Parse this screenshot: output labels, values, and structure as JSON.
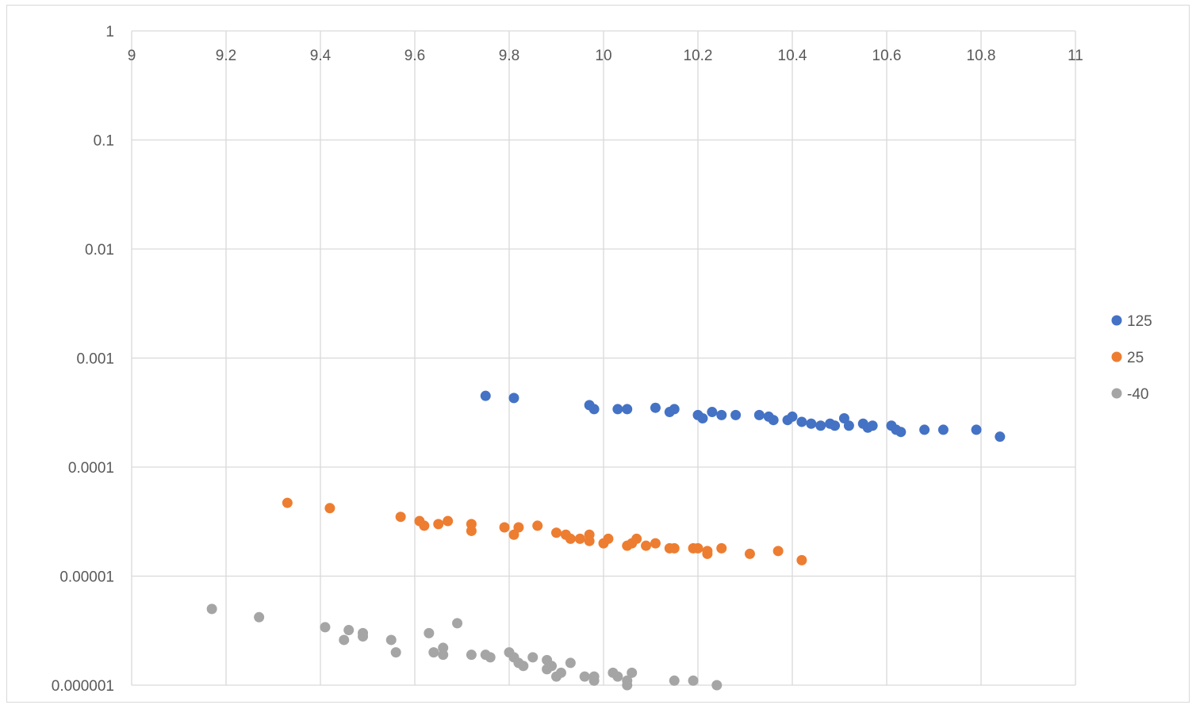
{
  "chart_data": {
    "type": "scatter",
    "title": "",
    "xlabel": "",
    "ylabel": "",
    "x_axis": {
      "min": 9,
      "max": 11,
      "major_unit": 0.2,
      "tick_labels": [
        "9",
        "9.2",
        "9.4",
        "9.6",
        "9.8",
        "10",
        "10.2",
        "10.4",
        "10.6",
        "10.8",
        "11"
      ],
      "position": "top"
    },
    "y_axis": {
      "scale": "log",
      "min": 1e-06,
      "max": 1,
      "tick_values": [
        1,
        0.1,
        0.01,
        0.001,
        0.0001,
        1e-05,
        1e-06
      ],
      "tick_labels": [
        "1",
        "0.1",
        "0.01",
        "0.001",
        "0.0001",
        "0.00001",
        "0.000001"
      ]
    },
    "grid": true,
    "legend_position": "right",
    "series": [
      {
        "name": "125",
        "color": "#4472C4",
        "points": [
          [
            9.75,
            0.00045
          ],
          [
            9.81,
            0.00043
          ],
          [
            9.97,
            0.00037
          ],
          [
            9.98,
            0.00034
          ],
          [
            10.03,
            0.00034
          ],
          [
            10.05,
            0.00034
          ],
          [
            10.11,
            0.00035
          ],
          [
            10.14,
            0.00032
          ],
          [
            10.15,
            0.00034
          ],
          [
            10.2,
            0.0003
          ],
          [
            10.21,
            0.00028
          ],
          [
            10.23,
            0.00032
          ],
          [
            10.25,
            0.0003
          ],
          [
            10.28,
            0.0003
          ],
          [
            10.33,
            0.0003
          ],
          [
            10.35,
            0.00029
          ],
          [
            10.36,
            0.00027
          ],
          [
            10.39,
            0.00027
          ],
          [
            10.4,
            0.00029
          ],
          [
            10.42,
            0.00026
          ],
          [
            10.44,
            0.00025
          ],
          [
            10.46,
            0.00024
          ],
          [
            10.48,
            0.00025
          ],
          [
            10.49,
            0.00024
          ],
          [
            10.51,
            0.00028
          ],
          [
            10.52,
            0.00024
          ],
          [
            10.55,
            0.00025
          ],
          [
            10.56,
            0.00023
          ],
          [
            10.57,
            0.00024
          ],
          [
            10.61,
            0.00024
          ],
          [
            10.62,
            0.00022
          ],
          [
            10.63,
            0.00021
          ],
          [
            10.68,
            0.00022
          ],
          [
            10.72,
            0.00022
          ],
          [
            10.79,
            0.00022
          ],
          [
            10.84,
            0.00019
          ]
        ]
      },
      {
        "name": "25",
        "color": "#ED7D31",
        "points": [
          [
            9.33,
            4.7e-05
          ],
          [
            9.42,
            4.2e-05
          ],
          [
            9.57,
            3.5e-05
          ],
          [
            9.61,
            3.2e-05
          ],
          [
            9.62,
            2.9e-05
          ],
          [
            9.65,
            3e-05
          ],
          [
            9.67,
            3.2e-05
          ],
          [
            9.72,
            3e-05
          ],
          [
            9.72,
            2.6e-05
          ],
          [
            9.79,
            2.8e-05
          ],
          [
            9.81,
            2.4e-05
          ],
          [
            9.82,
            2.8e-05
          ],
          [
            9.86,
            2.9e-05
          ],
          [
            9.9,
            2.5e-05
          ],
          [
            9.92,
            2.4e-05
          ],
          [
            9.93,
            2.2e-05
          ],
          [
            9.95,
            2.2e-05
          ],
          [
            9.97,
            2.4e-05
          ],
          [
            9.97,
            2.1e-05
          ],
          [
            10.0,
            2e-05
          ],
          [
            10.01,
            2.2e-05
          ],
          [
            10.05,
            1.9e-05
          ],
          [
            10.06,
            2e-05
          ],
          [
            10.07,
            2.2e-05
          ],
          [
            10.09,
            1.9e-05
          ],
          [
            10.11,
            2e-05
          ],
          [
            10.14,
            1.8e-05
          ],
          [
            10.15,
            1.8e-05
          ],
          [
            10.19,
            1.8e-05
          ],
          [
            10.2,
            1.8e-05
          ],
          [
            10.22,
            1.6e-05
          ],
          [
            10.22,
            1.7e-05
          ],
          [
            10.25,
            1.8e-05
          ],
          [
            10.31,
            1.6e-05
          ],
          [
            10.37,
            1.7e-05
          ],
          [
            10.42,
            1.4e-05
          ]
        ]
      },
      {
        "name": "-40",
        "color": "#A5A5A5",
        "points": [
          [
            9.17,
            5e-06
          ],
          [
            9.27,
            4.2e-06
          ],
          [
            9.41,
            3.4e-06
          ],
          [
            9.45,
            2.6e-06
          ],
          [
            9.46,
            3.2e-06
          ],
          [
            9.49,
            3e-06
          ],
          [
            9.49,
            2.8e-06
          ],
          [
            9.55,
            2.6e-06
          ],
          [
            9.56,
            2e-06
          ],
          [
            9.63,
            3e-06
          ],
          [
            9.64,
            2e-06
          ],
          [
            9.66,
            2.2e-06
          ],
          [
            9.66,
            1.9e-06
          ],
          [
            9.69,
            3.7e-06
          ],
          [
            9.72,
            1.9e-06
          ],
          [
            9.75,
            1.9e-06
          ],
          [
            9.76,
            1.8e-06
          ],
          [
            9.8,
            2e-06
          ],
          [
            9.81,
            1.8e-06
          ],
          [
            9.82,
            1.6e-06
          ],
          [
            9.83,
            1.5e-06
          ],
          [
            9.85,
            1.8e-06
          ],
          [
            9.88,
            1.4e-06
          ],
          [
            9.88,
            1.7e-06
          ],
          [
            9.89,
            1.5e-06
          ],
          [
            9.9,
            1.2e-06
          ],
          [
            9.91,
            1.3e-06
          ],
          [
            9.93,
            1.6e-06
          ],
          [
            9.96,
            1.2e-06
          ],
          [
            9.98,
            1.1e-06
          ],
          [
            9.98,
            1.2e-06
          ],
          [
            10.02,
            1.3e-06
          ],
          [
            10.03,
            1.2e-06
          ],
          [
            10.05,
            1.1e-06
          ],
          [
            10.05,
            1e-06
          ],
          [
            10.06,
            1.3e-06
          ],
          [
            10.15,
            1.1e-06
          ],
          [
            10.19,
            1.1e-06
          ],
          [
            10.24,
            1e-06
          ]
        ]
      }
    ]
  }
}
